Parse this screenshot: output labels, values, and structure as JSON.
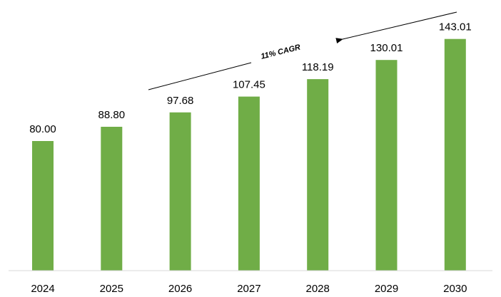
{
  "chart_data": {
    "type": "bar",
    "title": "",
    "xlabel": "",
    "ylabel": "",
    "categories": [
      "2024",
      "2025",
      "2026",
      "2027",
      "2028",
      "2029",
      "2030"
    ],
    "values": [
      80.0,
      88.8,
      97.68,
      107.45,
      118.19,
      130.01,
      143.01
    ],
    "value_labels": [
      "80.00",
      "88.80",
      "97.68",
      "107.45",
      "118.19",
      "130.01",
      "143.01"
    ],
    "ylim": [
      0,
      160
    ],
    "grid": false,
    "legend": "none",
    "bar_color": "#70ad47",
    "annotation": {
      "text": "11% CAGR",
      "arrow_direction": "up-right",
      "arrow_color": "#000000"
    }
  }
}
